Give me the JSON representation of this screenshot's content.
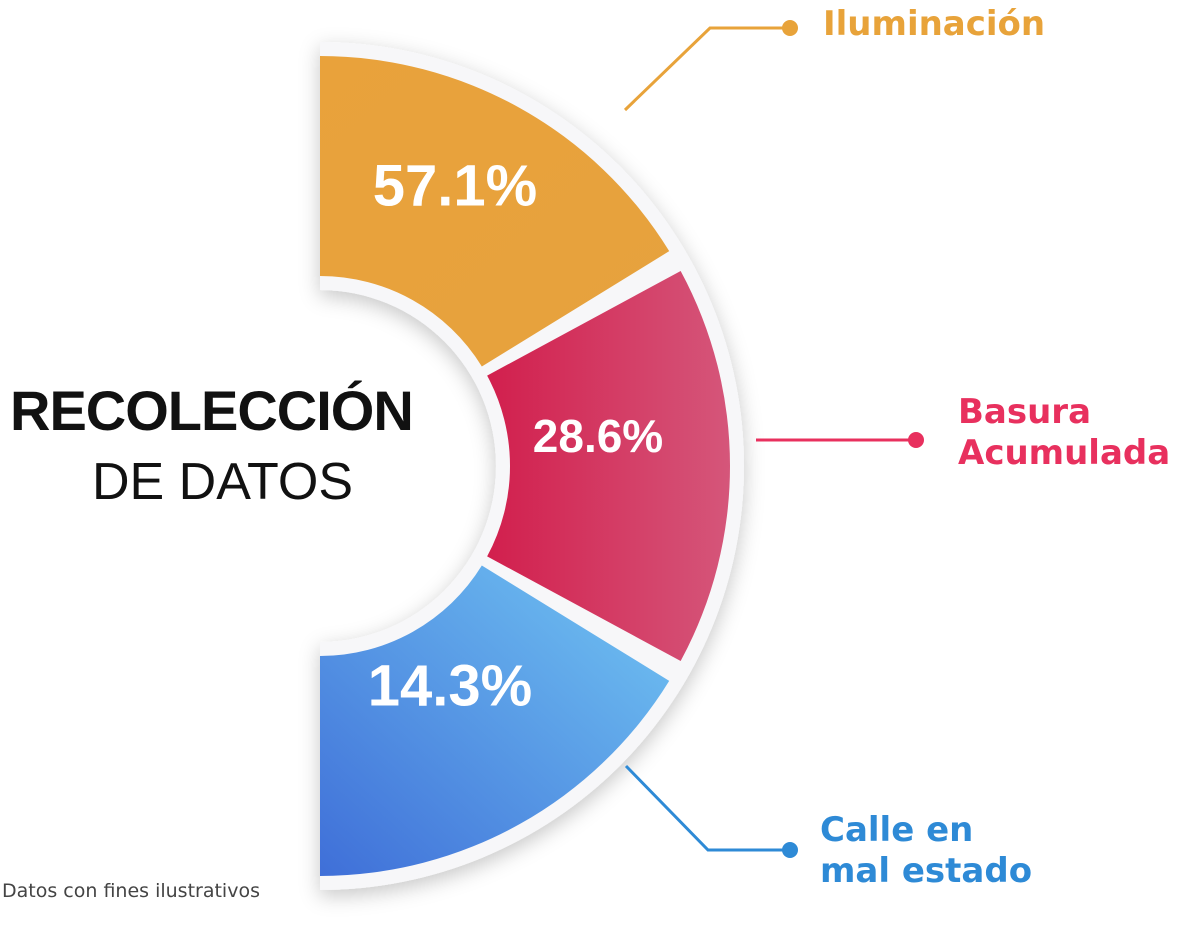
{
  "chart_data": {
    "type": "pie",
    "title": "RECOLECCIÓN",
    "subtitle": "DE DATOS",
    "note": "Datos con fines ilustrativos",
    "slices": [
      {
        "label_lines": [
          "Iluminación"
        ],
        "value": 57.1,
        "value_label": "57.1%",
        "color": "#E8A33A"
      },
      {
        "label_lines": [
          "Basura",
          "Acumulada"
        ],
        "value": 28.6,
        "value_label": "28.6%",
        "color": "#D42F5B"
      },
      {
        "label_lines": [
          "Calle en",
          "mal estado"
        ],
        "value": 14.3,
        "value_label": "14.3%",
        "color": "#4A8BE0"
      }
    ]
  },
  "colors": {
    "gold": "#E8A33A",
    "crimson": "#D42F5B",
    "blue": "#4A8BE0",
    "blue_light": "#6FC3F2",
    "crimson_light": "#D3506F",
    "legend_crimson": "#E8305E",
    "legend_blue": "#2E8AD6"
  }
}
